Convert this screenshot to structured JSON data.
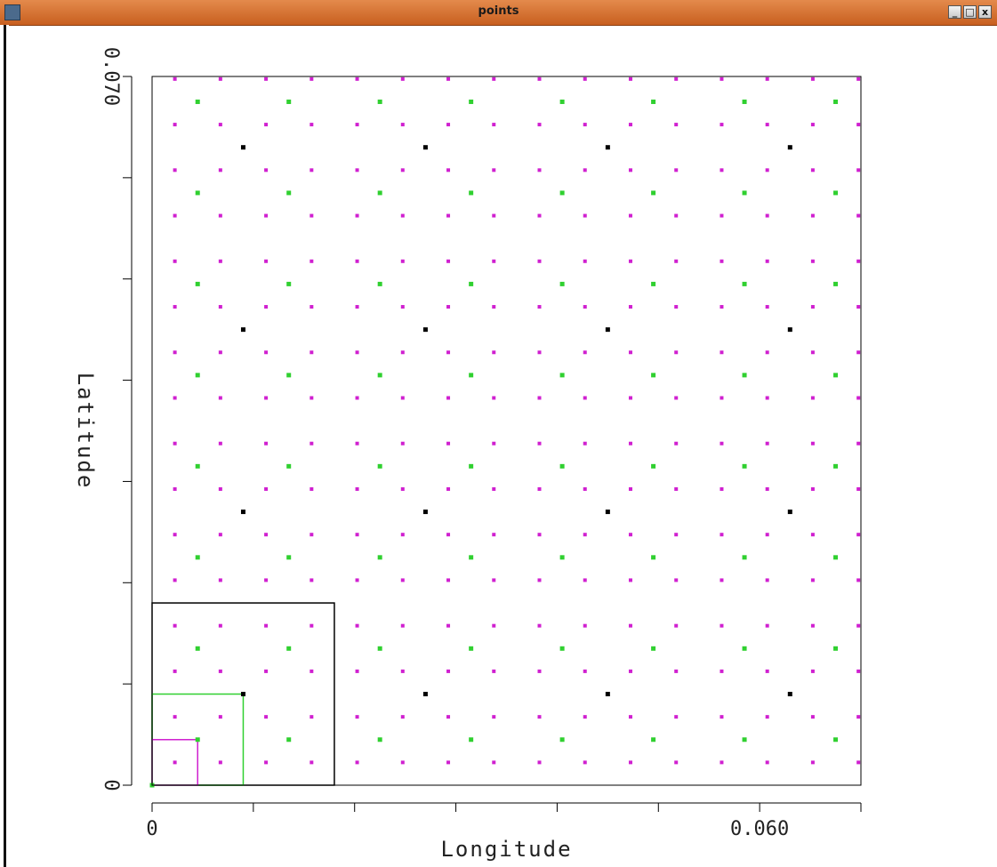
{
  "window": {
    "title": "points",
    "buttons": {
      "minimize": "_",
      "maximize": "□",
      "close": "x"
    }
  },
  "chart_data": {
    "type": "scatter",
    "title": "",
    "xlabel": "Longitude",
    "ylabel": "Latitude",
    "xlim": [
      0,
      0.07
    ],
    "ylim": [
      0,
      0.07
    ],
    "x_tick_labels": [
      {
        "value": 0,
        "label": "0"
      },
      {
        "value": 0.06,
        "label": "0.060"
      }
    ],
    "y_tick_labels": [
      {
        "value": 0,
        "label": "0"
      },
      {
        "value": 0.07,
        "label": "0.070"
      }
    ],
    "x_ticks_every": 0.01,
    "y_ticks_every": 0.01,
    "grid": false,
    "series": [
      {
        "color": "#d020d0",
        "x_start": 0.00225,
        "x_step": 0.0045,
        "x_count": 16,
        "y_start": 0.00225,
        "y_step": 0.0045,
        "y_count": 16
      },
      {
        "color": "#30d030",
        "x_start": 0.0045,
        "x_step": 0.009,
        "x_count": 8,
        "y_start": 0.0045,
        "y_step": 0.009,
        "y_count": 8
      },
      {
        "color": "#000000",
        "x_start": 0.009,
        "x_step": 0.018,
        "x_count": 4,
        "y_start": 0.009,
        "y_step": 0.018,
        "y_count": 4
      },
      {
        "color": "#30d030",
        "points": [
          [
            0,
            0
          ]
        ]
      }
    ],
    "rectangles": [
      {
        "color": "#000000",
        "x0": 0,
        "y0": 0,
        "x1": 0.018,
        "y1": 0.018
      },
      {
        "color": "#30d030",
        "x0": 0,
        "y0": 0,
        "x1": 0.009,
        "y1": 0.009
      },
      {
        "color": "#d020d0",
        "x0": 0,
        "y0": 0,
        "x1": 0.0045,
        "y1": 0.0045
      }
    ]
  }
}
